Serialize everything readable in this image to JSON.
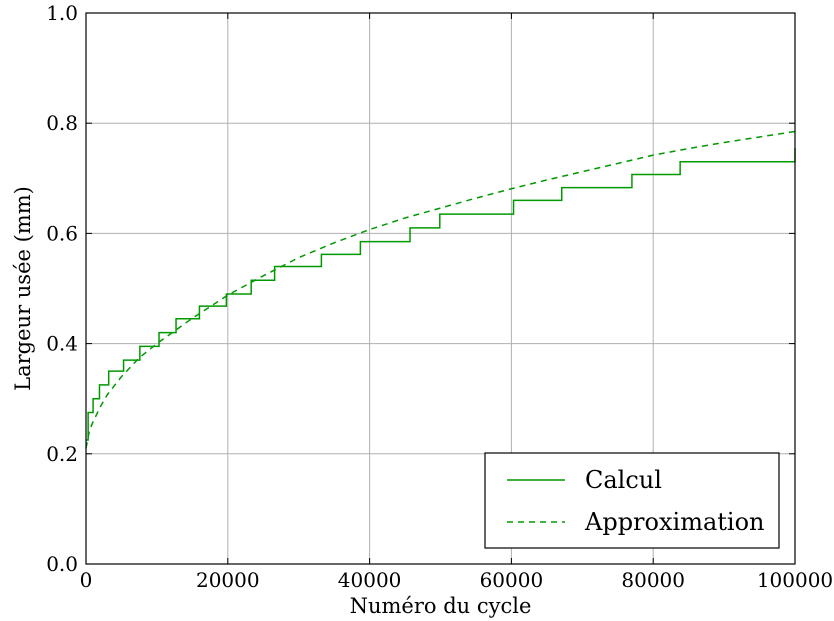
{
  "chart_data": {
    "type": "line",
    "title": "",
    "xlabel": "Numéro du cycle",
    "ylabel": "Largeur usée (mm)",
    "xlim": [
      0,
      100000
    ],
    "ylim": [
      0.0,
      1.0
    ],
    "x_ticks": [
      0,
      20000,
      40000,
      60000,
      80000,
      100000
    ],
    "x_tick_labels": [
      "0",
      "20000",
      "40000",
      "60000",
      "80000",
      "100000"
    ],
    "y_ticks": [
      0.0,
      0.2,
      0.4,
      0.6,
      0.8,
      1.0
    ],
    "y_tick_labels": [
      "0.0",
      "0.2",
      "0.4",
      "0.6",
      "0.8",
      "1.0"
    ],
    "grid": true,
    "legend_position": "bottom-right",
    "colors": {
      "series": "#009900"
    },
    "series": [
      {
        "name": "Calcul",
        "style": "step-solid",
        "x": [
          0,
          300,
          1000,
          1900,
          3200,
          5300,
          7600,
          10300,
          12700,
          16000,
          19800,
          23300,
          26600,
          33200,
          38700,
          45700,
          49900,
          60300,
          67100,
          77000,
          83800,
          100000
        ],
        "y": [
          0.225,
          0.275,
          0.3,
          0.325,
          0.35,
          0.37,
          0.395,
          0.42,
          0.445,
          0.468,
          0.49,
          0.515,
          0.54,
          0.562,
          0.585,
          0.61,
          0.635,
          0.66,
          0.683,
          0.707,
          0.73,
          0.755
        ]
      },
      {
        "name": "Approximation",
        "style": "dashed",
        "x": [
          0,
          500,
          1000,
          2000,
          3000,
          5000,
          7500,
          10000,
          15000,
          20000,
          25000,
          30000,
          35000,
          40000,
          45000,
          50000,
          55000,
          60000,
          65000,
          70000,
          75000,
          80000,
          85000,
          90000,
          95000,
          100000
        ],
        "y": [
          0.21,
          0.243,
          0.258,
          0.285,
          0.307,
          0.34,
          0.374,
          0.4,
          0.446,
          0.488,
          0.523,
          0.556,
          0.583,
          0.607,
          0.628,
          0.646,
          0.664,
          0.681,
          0.697,
          0.712,
          0.727,
          0.742,
          0.754,
          0.765,
          0.775,
          0.785
        ]
      }
    ]
  }
}
